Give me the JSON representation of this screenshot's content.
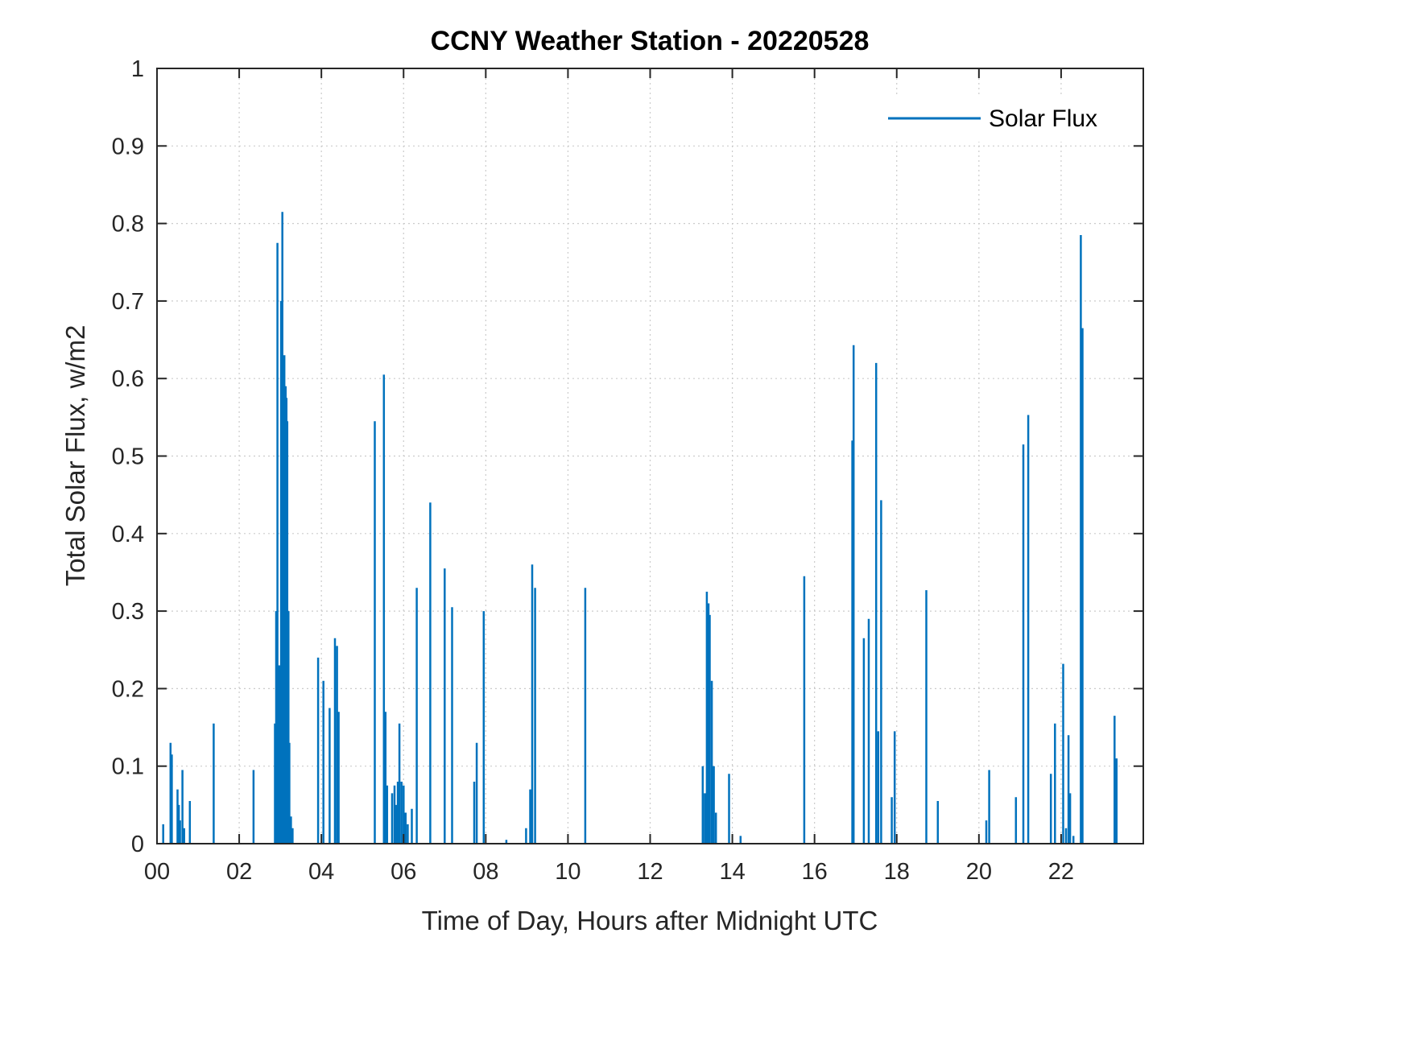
{
  "title": "CCNY Weather Station - 20220528",
  "chart_data": {
    "type": "line",
    "title": "CCNY Weather Station - 20220528",
    "xlabel": "Time of Day, Hours after Midnight UTC",
    "ylabel": "Total Solar Flux, w/m2",
    "xlim": [
      0,
      24
    ],
    "ylim": [
      0,
      1
    ],
    "xticks": [
      0,
      2,
      4,
      6,
      8,
      10,
      12,
      14,
      16,
      18,
      20,
      22
    ],
    "xtick_labels": [
      "00",
      "02",
      "04",
      "06",
      "08",
      "10",
      "12",
      "14",
      "16",
      "18",
      "20",
      "22"
    ],
    "yticks": [
      0,
      0.1,
      0.2,
      0.3,
      0.4,
      0.5,
      0.6,
      0.7,
      0.8,
      0.9,
      1
    ],
    "ytick_labels": [
      "0",
      "0.1",
      "0.2",
      "0.3",
      "0.4",
      "0.5",
      "0.6",
      "0.7",
      "0.8",
      "0.9",
      "1"
    ],
    "grid": true,
    "line_color": "#0072BD",
    "legend": {
      "position": "top-right",
      "entries": [
        "Solar Flux"
      ]
    },
    "series": [
      {
        "name": "Solar Flux",
        "note": "sparse spikes rising from zero baseline; [hour, w/m2]",
        "spikes": [
          [
            0.15,
            0.025
          ],
          [
            0.33,
            0.13
          ],
          [
            0.36,
            0.115
          ],
          [
            0.5,
            0.07
          ],
          [
            0.53,
            0.05
          ],
          [
            0.56,
            0.03
          ],
          [
            0.62,
            0.095
          ],
          [
            0.66,
            0.02
          ],
          [
            0.8,
            0.055
          ],
          [
            1.38,
            0.155
          ],
          [
            2.35,
            0.095
          ],
          [
            2.87,
            0.155
          ],
          [
            2.9,
            0.3
          ],
          [
            2.93,
            0.775
          ],
          [
            2.97,
            0.23
          ],
          [
            3.02,
            0.7
          ],
          [
            3.05,
            0.815
          ],
          [
            3.08,
            0.56
          ],
          [
            3.1,
            0.63
          ],
          [
            3.13,
            0.59
          ],
          [
            3.15,
            0.575
          ],
          [
            3.17,
            0.545
          ],
          [
            3.2,
            0.3
          ],
          [
            3.22,
            0.13
          ],
          [
            3.26,
            0.035
          ],
          [
            3.3,
            0.02
          ],
          [
            3.92,
            0.24
          ],
          [
            4.05,
            0.21
          ],
          [
            4.2,
            0.175
          ],
          [
            4.33,
            0.265
          ],
          [
            4.38,
            0.255
          ],
          [
            4.42,
            0.17
          ],
          [
            5.3,
            0.545
          ],
          [
            5.52,
            0.605
          ],
          [
            5.56,
            0.17
          ],
          [
            5.6,
            0.075
          ],
          [
            5.72,
            0.065
          ],
          [
            5.78,
            0.075
          ],
          [
            5.82,
            0.05
          ],
          [
            5.86,
            0.08
          ],
          [
            5.9,
            0.155
          ],
          [
            5.95,
            0.08
          ],
          [
            6.0,
            0.075
          ],
          [
            6.05,
            0.04
          ],
          [
            6.1,
            0.025
          ],
          [
            6.2,
            0.045
          ],
          [
            6.32,
            0.33
          ],
          [
            6.65,
            0.44
          ],
          [
            7.0,
            0.355
          ],
          [
            7.18,
            0.305
          ],
          [
            7.72,
            0.08
          ],
          [
            7.78,
            0.13
          ],
          [
            7.95,
            0.3
          ],
          [
            8.5,
            0.005
          ],
          [
            8.98,
            0.02
          ],
          [
            9.08,
            0.07
          ],
          [
            9.13,
            0.36
          ],
          [
            9.2,
            0.33
          ],
          [
            10.42,
            0.33
          ],
          [
            13.28,
            0.1
          ],
          [
            13.33,
            0.065
          ],
          [
            13.38,
            0.325
          ],
          [
            13.42,
            0.31
          ],
          [
            13.45,
            0.295
          ],
          [
            13.5,
            0.21
          ],
          [
            13.55,
            0.1
          ],
          [
            13.6,
            0.04
          ],
          [
            13.92,
            0.09
          ],
          [
            14.2,
            0.01
          ],
          [
            15.75,
            0.345
          ],
          [
            16.92,
            0.52
          ],
          [
            16.95,
            0.643
          ],
          [
            17.2,
            0.265
          ],
          [
            17.32,
            0.29
          ],
          [
            17.5,
            0.62
          ],
          [
            17.55,
            0.145
          ],
          [
            17.62,
            0.443
          ],
          [
            17.88,
            0.06
          ],
          [
            17.95,
            0.145
          ],
          [
            18.72,
            0.327
          ],
          [
            19.0,
            0.055
          ],
          [
            20.18,
            0.03
          ],
          [
            20.25,
            0.095
          ],
          [
            20.9,
            0.06
          ],
          [
            21.08,
            0.515
          ],
          [
            21.2,
            0.553
          ],
          [
            21.75,
            0.09
          ],
          [
            21.85,
            0.155
          ],
          [
            22.05,
            0.232
          ],
          [
            22.12,
            0.02
          ],
          [
            22.18,
            0.14
          ],
          [
            22.22,
            0.065
          ],
          [
            22.3,
            0.01
          ],
          [
            22.48,
            0.785
          ],
          [
            22.52,
            0.665
          ],
          [
            23.3,
            0.165
          ],
          [
            23.35,
            0.11
          ]
        ]
      }
    ]
  }
}
